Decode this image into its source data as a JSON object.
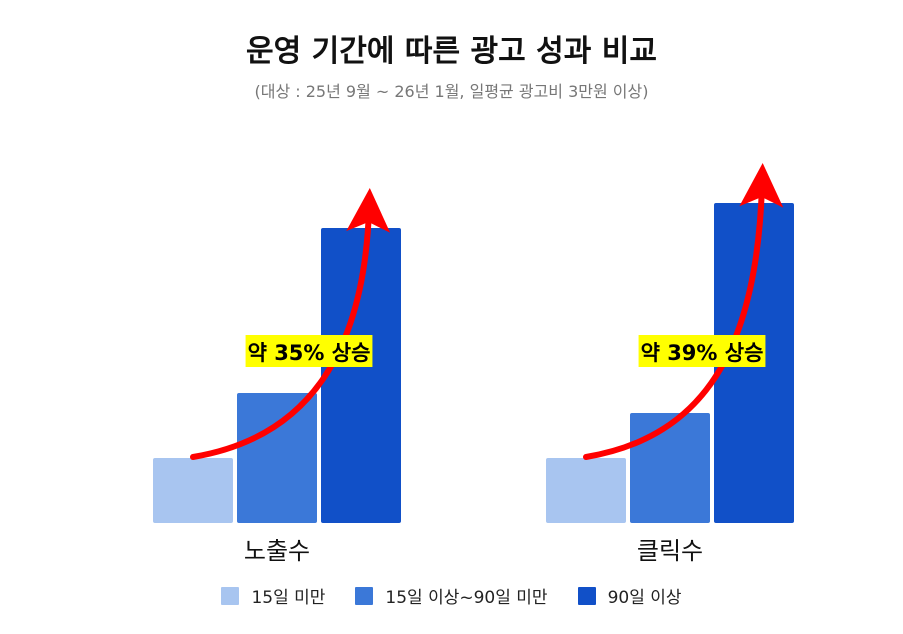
{
  "title": "운영 기간에 따른 광고 성과 비교",
  "subtitle": "(대상 : 25년 9월 ~ 26년 1월, 일평균 광고비 3만원 이상)",
  "chart_data": {
    "type": "bar",
    "title": "운영 기간에 따른 광고 성과 비교",
    "subtitle": "(대상 : 25년 9월 ~ 26년 1월, 일평균 광고비 3만원 이상)",
    "categories": [
      "노출수",
      "클릭수"
    ],
    "series": [
      {
        "name": "15일 미만",
        "color": "#a8c5f0",
        "values": [
          65,
          65
        ]
      },
      {
        "name": "15일 이상~90일 미만",
        "color": "#3b78d8",
        "values": [
          130,
          110
        ]
      },
      {
        "name": "90일 이상",
        "color": "#1150c8",
        "values": [
          295,
          320
        ]
      }
    ],
    "annotations": [
      {
        "category": "노출수",
        "text": "약 35% 상승",
        "highlight": "#ffff00",
        "arrow_color": "#ff0000"
      },
      {
        "category": "클릭수",
        "text": "약 39% 상승",
        "highlight": "#ffff00",
        "arrow_color": "#ff0000"
      }
    ],
    "ylim": [
      0,
      330
    ],
    "axes_visible": false,
    "grid": false,
    "legend_position": "bottom"
  }
}
